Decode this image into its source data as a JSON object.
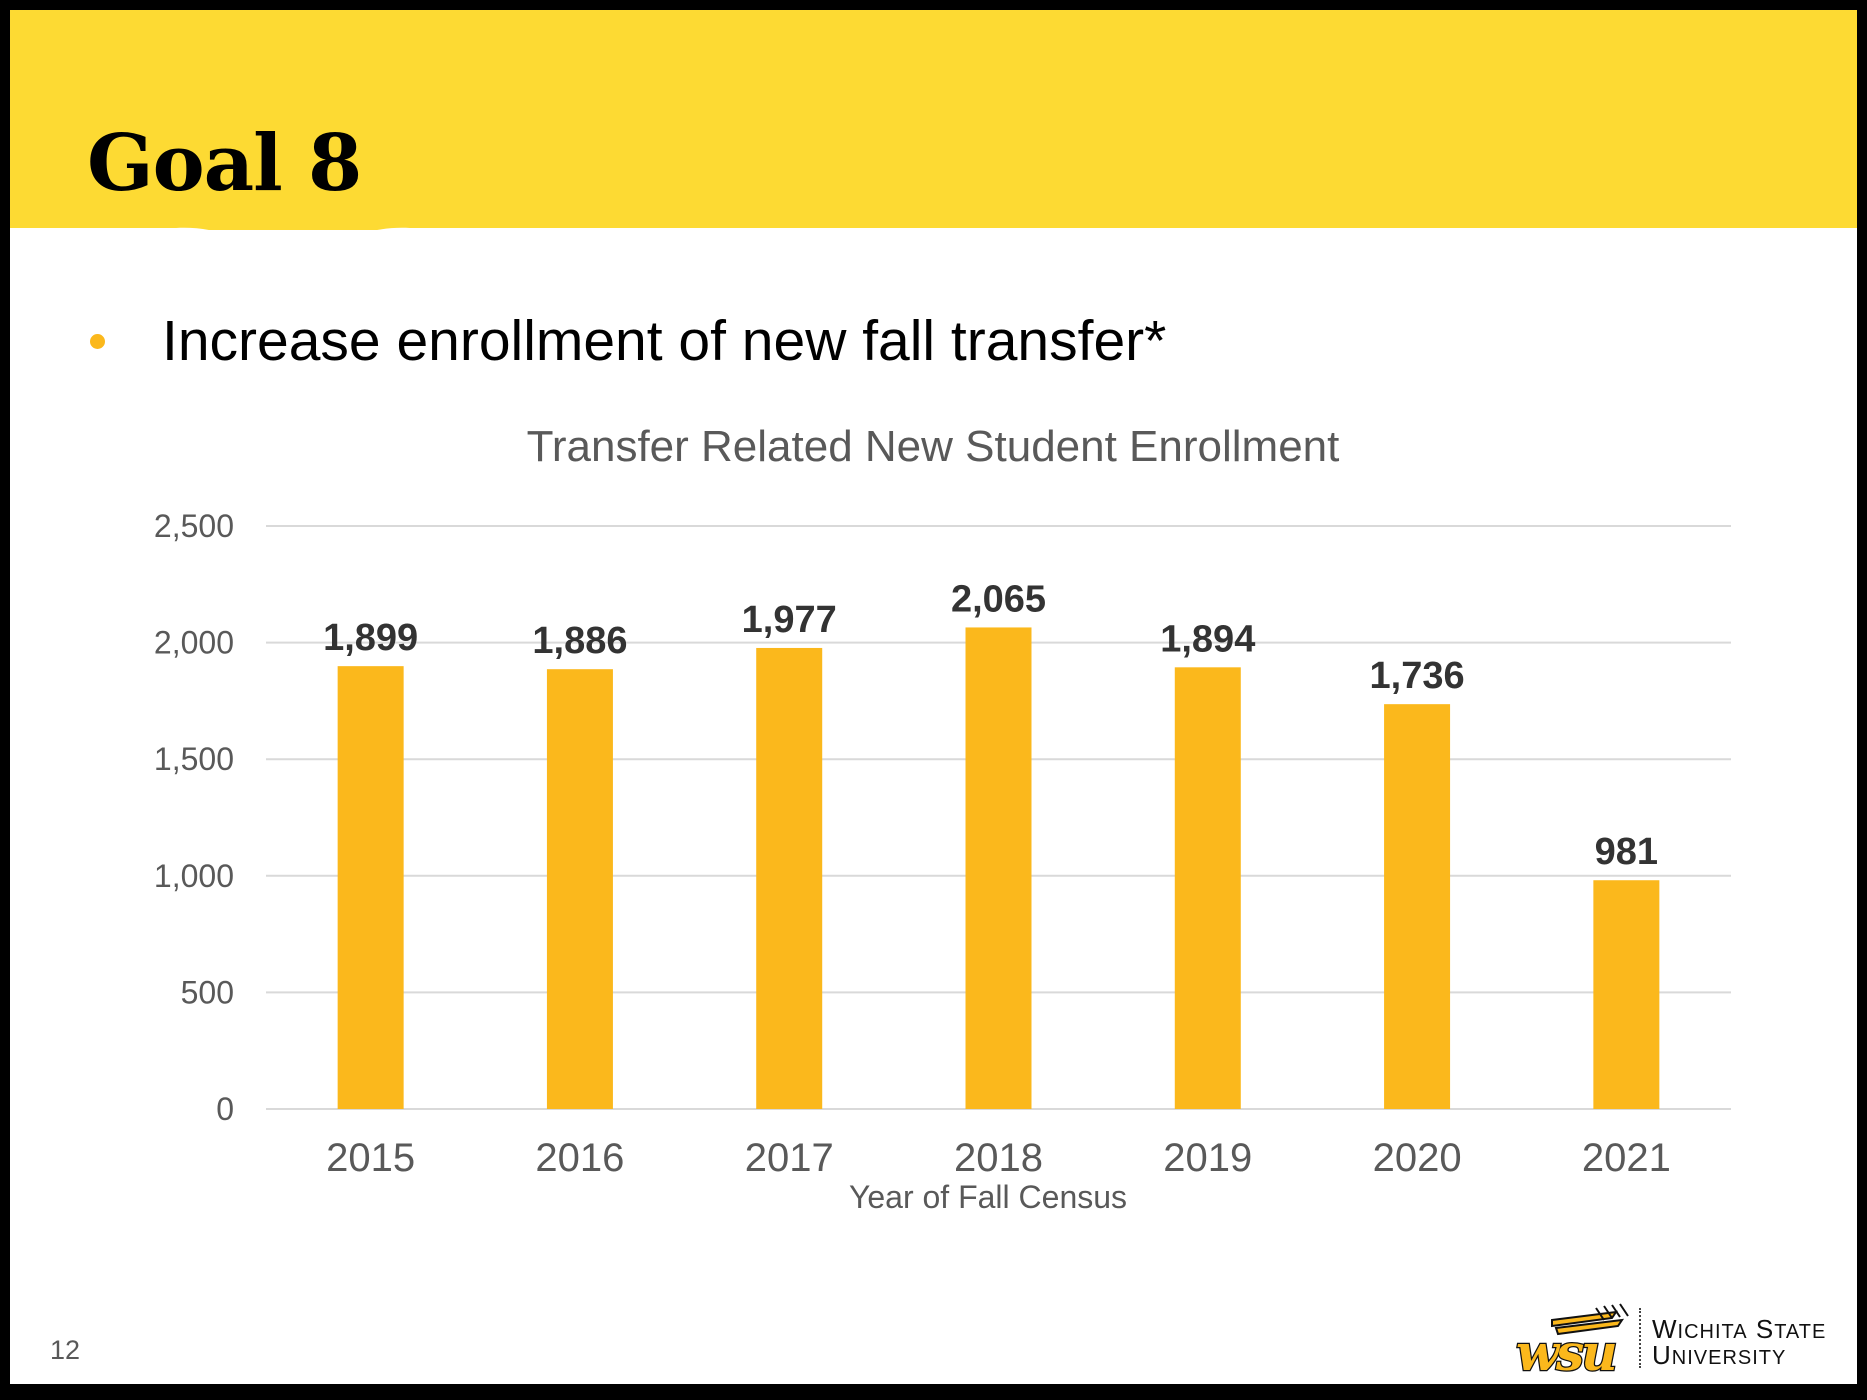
{
  "slide": {
    "title": "Goal 8",
    "bullet": "Increase enrollment of new fall transfer*",
    "page_number": "12"
  },
  "logo": {
    "mark": "wsu",
    "line1": "Wichita State",
    "line2": "University"
  },
  "colors": {
    "banner": "#FDDA33",
    "bar": "#FBB81C",
    "bullet": "#FBB81C",
    "grid": "#D9D9D9",
    "axis_text": "#595959",
    "label_text": "#333333"
  },
  "chart_data": {
    "type": "bar",
    "title": "Transfer Related New Student Enrollment",
    "xlabel": "Year of Fall Census",
    "ylabel": "",
    "categories": [
      "2015",
      "2016",
      "2017",
      "2018",
      "2019",
      "2020",
      "2021"
    ],
    "values": [
      1899,
      1886,
      1977,
      2065,
      1894,
      1736,
      981
    ],
    "data_labels": [
      "1,899",
      "1,886",
      "1,977",
      "2,065",
      "1,894",
      "1,736",
      "981"
    ],
    "ylim": [
      0,
      2500
    ],
    "yticks": [
      0,
      500,
      1000,
      1500,
      2000,
      2500
    ],
    "ytick_labels": [
      "0",
      "500",
      "1,000",
      "1,500",
      "2,000",
      "2,500"
    ],
    "grid": true,
    "legend": "none"
  }
}
